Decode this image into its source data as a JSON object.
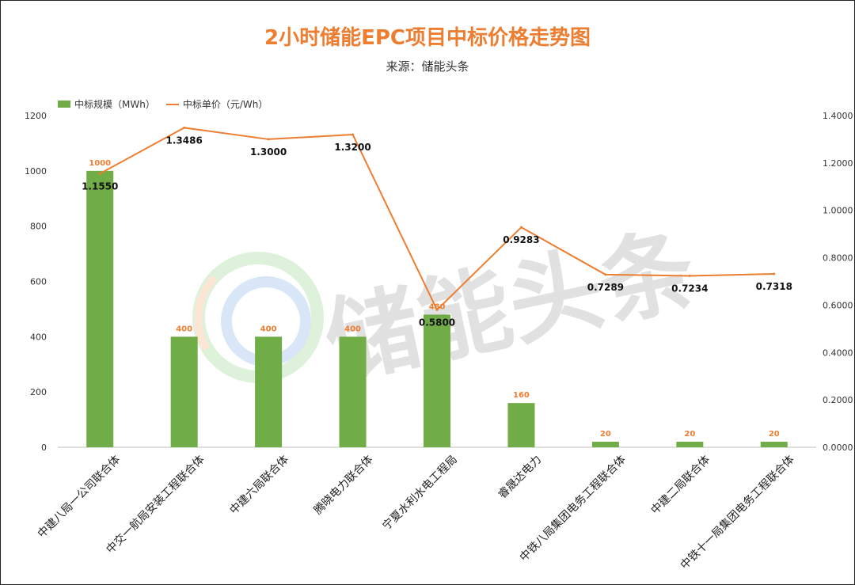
{
  "header": {
    "title": "2小时储能EPC项目中标价格走势图",
    "subtitle": "来源：储能头条"
  },
  "watermark": {
    "text": "储能头条"
  },
  "colors": {
    "bar": "#70AD47",
    "line": "#ED7D31",
    "title": "#ED7D31"
  },
  "chart_data": {
    "type": "bar",
    "title": "2小时储能EPC项目中标价格走势图",
    "subtitle": "来源：储能头条",
    "categories": [
      "中建八局一公司联合体",
      "中交一航局安装工程联合体",
      "中建六局联合体",
      "腾晓电力联合体",
      "宁夏水利水电工程局",
      "睿晟达电力",
      "中铁八局集团电务工程联合体",
      "中建二局联合体",
      "中铁十一局集团电务工程联合体"
    ],
    "series": [
      {
        "name": "中标规模（MWh）",
        "type": "bar",
        "axis": "left",
        "values": [
          1000,
          400,
          400,
          400,
          480,
          160,
          20,
          20,
          20
        ],
        "labels": [
          "1000",
          "400",
          "400",
          "400",
          "480",
          "160",
          "20",
          "20",
          "20"
        ]
      },
      {
        "name": "中标单价（元/Wh）",
        "type": "line",
        "axis": "right",
        "values": [
          1.155,
          1.3486,
          1.3,
          1.32,
          0.58,
          0.9283,
          0.7289,
          0.7234,
          0.7318
        ],
        "labels": [
          "1.1550",
          "1.3486",
          "1.3000",
          "1.3200",
          "0.5800",
          "0.9283",
          "0.7289",
          "0.7234",
          "0.7318"
        ]
      }
    ],
    "y_left": {
      "range": [
        0,
        1200
      ],
      "ticks": [
        "0",
        "200",
        "400",
        "600",
        "800",
        "1000",
        "1200"
      ]
    },
    "y_right": {
      "range": [
        0,
        1.4
      ],
      "ticks": [
        "0.0000",
        "0.2000",
        "0.4000",
        "0.6000",
        "0.8000",
        "1.0000",
        "1.2000",
        "1.4000"
      ]
    },
    "legend_position": "top-left",
    "grid": false
  }
}
